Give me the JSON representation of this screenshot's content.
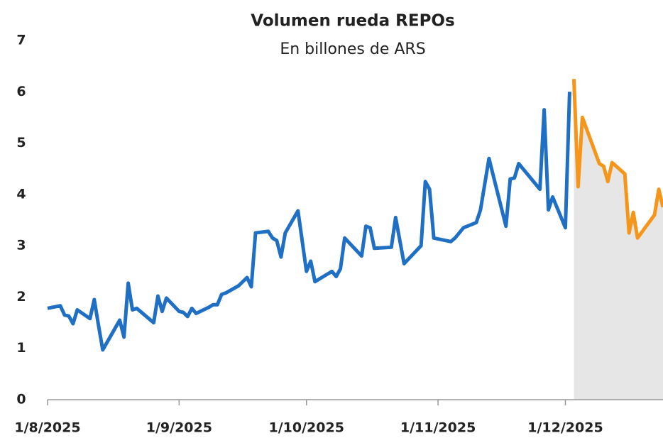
{
  "chart_data": {
    "type": "line",
    "title": "Volumen rueda REPOs",
    "subtitle": "En billones de ARS",
    "ylim": [
      0,
      7
    ],
    "yticks": [
      0,
      1,
      2,
      3,
      4,
      5,
      6,
      7
    ],
    "xlim": [
      "2025-08-01",
      "2025-12-24"
    ],
    "xticks": [
      {
        "value": "2025-08-01",
        "label": "1/8/2025"
      },
      {
        "value": "2025-09-01",
        "label": "1/9/2025"
      },
      {
        "value": "2025-10-01",
        "label": "1/10/2025"
      },
      {
        "value": "2025-11-01",
        "label": "1/11/2025"
      },
      {
        "value": "2025-12-01",
        "label": "1/12/2025"
      }
    ],
    "series": [
      {
        "color": "#1f6fc5",
        "x": [
          "2025-08-01",
          "2025-08-04",
          "2025-08-05",
          "2025-08-06",
          "2025-08-07",
          "2025-08-08",
          "2025-08-11",
          "2025-08-12",
          "2025-08-13",
          "2025-08-14",
          "2025-08-18",
          "2025-08-19",
          "2025-08-20",
          "2025-08-21",
          "2025-08-22",
          "2025-08-26",
          "2025-08-27",
          "2025-08-28",
          "2025-08-29",
          "2025-09-01",
          "2025-09-02",
          "2025-09-03",
          "2025-09-04",
          "2025-09-05",
          "2025-09-08",
          "2025-09-09",
          "2025-09-10",
          "2025-09-11",
          "2025-09-12",
          "2025-09-15",
          "2025-09-16",
          "2025-09-17",
          "2025-09-18",
          "2025-09-19",
          "2025-09-22",
          "2025-09-23",
          "2025-09-24",
          "2025-09-25",
          "2025-09-26",
          "2025-09-29",
          "2025-10-01",
          "2025-10-02",
          "2025-10-03",
          "2025-10-07",
          "2025-10-08",
          "2025-10-09",
          "2025-10-10",
          "2025-10-14",
          "2025-10-15",
          "2025-10-16",
          "2025-10-17",
          "2025-10-21",
          "2025-10-22",
          "2025-10-24",
          "2025-10-28",
          "2025-10-29",
          "2025-10-30",
          "2025-10-31",
          "2025-11-04",
          "2025-11-05",
          "2025-11-07",
          "2025-11-10",
          "2025-11-11",
          "2025-11-13",
          "2025-11-17",
          "2025-11-18",
          "2025-11-19",
          "2025-11-20",
          "2025-11-25",
          "2025-11-26",
          "2025-11-27",
          "2025-11-28",
          "2025-12-01",
          "2025-12-02"
        ],
        "values": [
          1.78,
          1.83,
          1.65,
          1.63,
          1.48,
          1.75,
          1.58,
          1.95,
          1.45,
          0.97,
          1.55,
          1.22,
          2.27,
          1.75,
          1.78,
          1.5,
          2.02,
          1.72,
          1.98,
          1.72,
          1.7,
          1.62,
          1.78,
          1.68,
          1.8,
          1.85,
          1.85,
          2.05,
          2.08,
          2.22,
          2.3,
          2.38,
          2.2,
          3.25,
          3.28,
          3.15,
          3.1,
          2.78,
          3.25,
          3.68,
          2.5,
          2.7,
          2.3,
          2.5,
          2.4,
          2.55,
          3.15,
          2.8,
          3.38,
          3.35,
          2.95,
          2.97,
          3.55,
          2.65,
          3.0,
          4.25,
          4.1,
          3.15,
          3.08,
          3.15,
          3.35,
          3.45,
          3.7,
          4.7,
          3.38,
          4.3,
          4.32,
          4.6,
          4.1,
          5.65,
          3.7,
          3.95,
          3.35,
          6.0
        ]
      },
      {
        "color": "#f5961b",
        "area_fill": "#e6e6e6",
        "x": [
          "2025-12-03",
          "2025-12-04",
          "2025-12-05",
          "2025-12-09",
          "2025-12-10",
          "2025-12-11",
          "2025-12-12",
          "2025-12-15",
          "2025-12-16",
          "2025-12-17",
          "2025-12-18",
          "2025-12-22",
          "2025-12-23",
          "2025-12-24"
        ],
        "values": [
          6.25,
          4.15,
          5.5,
          4.6,
          4.55,
          4.25,
          4.62,
          4.4,
          3.25,
          3.65,
          3.15,
          3.6,
          4.1,
          3.75
        ]
      }
    ]
  }
}
